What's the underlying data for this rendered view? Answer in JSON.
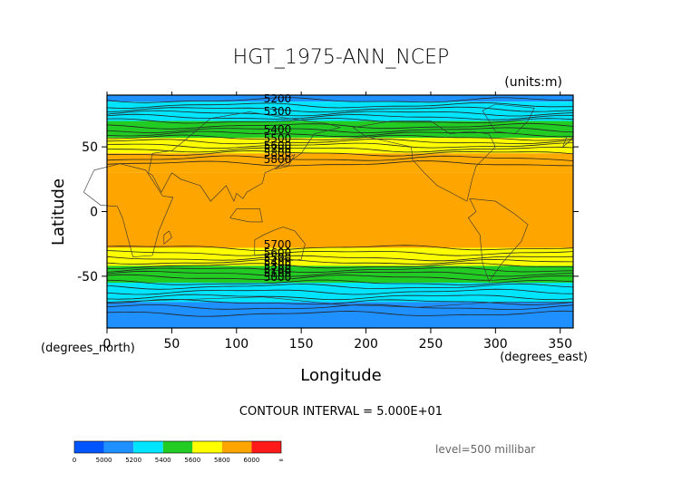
{
  "chart_data": {
    "type": "filled-contour-map",
    "title": "HGT_1975-ANN_NCEP",
    "units": "(units:m)",
    "xlabel": "Longitude",
    "ylabel": "Latitude",
    "x_unit_label": "(degrees_east)",
    "y_unit_label": "(degrees_north)",
    "xlim": [
      0,
      360
    ],
    "ylim": [
      -90,
      90
    ],
    "x_ticks": [
      0,
      50,
      100,
      150,
      200,
      250,
      300,
      350
    ],
    "y_ticks": [
      -50,
      0,
      50
    ],
    "contour_interval_text": "CONTOUR INTERVAL = 5.000E+01",
    "level_text": "level=500 millibar",
    "contour_labels_visible": [
      "5200",
      "5300",
      "5400",
      "5500",
      "5600",
      "5700",
      "5800",
      "5800",
      "5700",
      "5600",
      "5500",
      "5400",
      "5300",
      "5200",
      "5100",
      "5000"
    ],
    "bands_north_to_south": [
      {
        "lat_top": 90,
        "lat_bottom": 85,
        "range": "5000-5200",
        "color": "#1e90ff"
      },
      {
        "lat_top": 85,
        "lat_bottom": 70,
        "range": "5200-5400",
        "color": "#00e5ff"
      },
      {
        "lat_top": 70,
        "lat_bottom": 57,
        "range": "5400-5600",
        "color": "#22cc22"
      },
      {
        "lat_top": 57,
        "lat_bottom": 45,
        "range": "5600-5800",
        "color": "#ffff00"
      },
      {
        "lat_top": 45,
        "lat_bottom": 30,
        "range": "5800-6000",
        "color": "#ffaa00"
      },
      {
        "lat_top": 30,
        "lat_bottom": -28,
        "range": "5800-6000",
        "color": "#ffa500"
      },
      {
        "lat_top": -28,
        "lat_bottom": -42,
        "range": "5600-5800",
        "color": "#ffff00"
      },
      {
        "lat_top": -42,
        "lat_bottom": -55,
        "range": "5400-5600",
        "color": "#22cc22"
      },
      {
        "lat_top": -55,
        "lat_bottom": -70,
        "range": "5200-5400",
        "color": "#00e5ff"
      },
      {
        "lat_top": -70,
        "lat_bottom": -90,
        "range": "5000-5200",
        "color": "#1e90ff"
      }
    ],
    "colorbar": {
      "labels": [
        "0",
        "5000",
        "5200",
        "5400",
        "5600",
        "5800",
        "6000",
        "∞"
      ],
      "colors": [
        "#0055ff",
        "#1e90ff",
        "#00e5ff",
        "#22cc22",
        "#ffff00",
        "#ffa500",
        "#ff1a1a"
      ]
    }
  }
}
